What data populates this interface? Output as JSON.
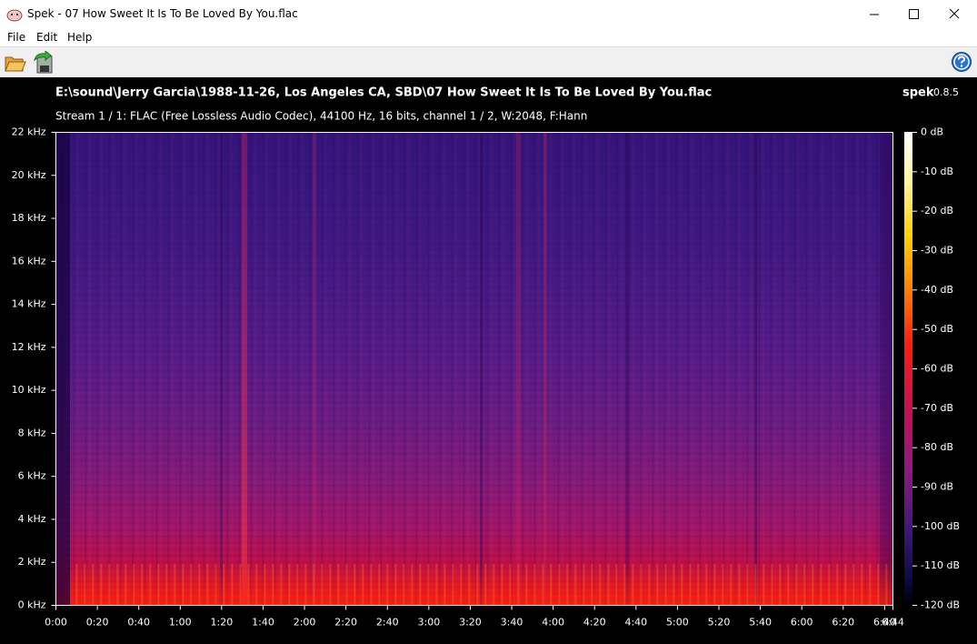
{
  "window": {
    "title": "Spek - 07 How Sweet It Is To Be Loved By You.flac"
  },
  "menu": [
    "File",
    "Edit",
    "Help"
  ],
  "header": {
    "path": "E:\\sound\\Jerry Garcia\\1988-11-26, Los Angeles CA, SBD\\07 How Sweet It Is To Be Loved By You.flac",
    "stream": "Stream 1 / 1: FLAC (Free Lossless Audio Codec), 44100 Hz, 16 bits, channel 1 / 2, W:2048, F:Hann",
    "app": "spek",
    "version": "0.8.5"
  },
  "spectrogram": {
    "xlim": [
      0,
      404
    ],
    "xticks": [
      {
        "value": 0,
        "label": "0:00"
      },
      {
        "value": 20,
        "label": "0:20"
      },
      {
        "value": 40,
        "label": "0:40"
      },
      {
        "value": 60,
        "label": "1:00"
      },
      {
        "value": 80,
        "label": "1:20"
      },
      {
        "value": 100,
        "label": "1:40"
      },
      {
        "value": 120,
        "label": "2:00"
      },
      {
        "value": 140,
        "label": "2:20"
      },
      {
        "value": 160,
        "label": "2:40"
      },
      {
        "value": 180,
        "label": "3:00"
      },
      {
        "value": 200,
        "label": "3:20"
      },
      {
        "value": 220,
        "label": "3:40"
      },
      {
        "value": 240,
        "label": "4:00"
      },
      {
        "value": 260,
        "label": "4:20"
      },
      {
        "value": 280,
        "label": "4:40"
      },
      {
        "value": 300,
        "label": "5:00"
      },
      {
        "value": 320,
        "label": "5:20"
      },
      {
        "value": 340,
        "label": "5:40"
      },
      {
        "value": 360,
        "label": "6:00"
      },
      {
        "value": 380,
        "label": "6:20"
      },
      {
        "value": 400,
        "label": "6:40"
      },
      {
        "value": 404,
        "label": "6:44"
      }
    ],
    "ylim": [
      0,
      22
    ],
    "yticks": [
      {
        "value": 0,
        "label": "0 kHz"
      },
      {
        "value": 2,
        "label": "2 kHz"
      },
      {
        "value": 4,
        "label": "4 kHz"
      },
      {
        "value": 6,
        "label": "6 kHz"
      },
      {
        "value": 8,
        "label": "8 kHz"
      },
      {
        "value": 10,
        "label": "10 kHz"
      },
      {
        "value": 12,
        "label": "12 kHz"
      },
      {
        "value": 14,
        "label": "14 kHz"
      },
      {
        "value": 16,
        "label": "16 kHz"
      },
      {
        "value": 18,
        "label": "18 kHz"
      },
      {
        "value": 20,
        "label": "20 kHz"
      },
      {
        "value": 22,
        "label": "22 kHz"
      }
    ],
    "dblim": [
      -120,
      0
    ],
    "dbticks": [
      {
        "value": 0,
        "label": "0 dB"
      },
      {
        "value": -10,
        "label": "-10 dB"
      },
      {
        "value": -20,
        "label": "-20 dB"
      },
      {
        "value": -30,
        "label": "-30 dB"
      },
      {
        "value": -40,
        "label": "-40 dB"
      },
      {
        "value": -50,
        "label": "-50 dB"
      },
      {
        "value": -60,
        "label": "-60 dB"
      },
      {
        "value": -70,
        "label": "-70 dB"
      },
      {
        "value": -80,
        "label": "-80 dB"
      },
      {
        "value": -90,
        "label": "-90 dB"
      },
      {
        "value": -100,
        "label": "-100 dB"
      },
      {
        "value": -110,
        "label": "-110 dB"
      },
      {
        "value": -120,
        "label": "-120 dB"
      }
    ]
  }
}
